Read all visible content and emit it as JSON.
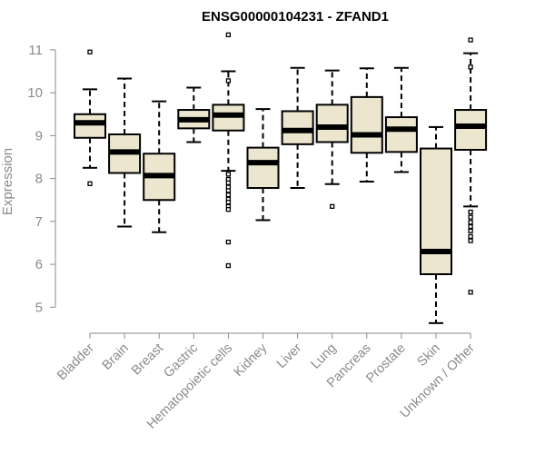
{
  "chart_data": {
    "type": "box",
    "title": "ENSG00000104231 - ZFAND1",
    "xlabel": "",
    "ylabel": "Expression",
    "ylim": [
      4.5,
      11.4
    ],
    "yticks": [
      5,
      6,
      7,
      8,
      9,
      10,
      11
    ],
    "grid": false,
    "legend": "none",
    "box_color": "#ede6cf",
    "categories": [
      "Bladder",
      "Brain",
      "Breast",
      "Gastric",
      "Hematopoietic cells",
      "Kidney",
      "Liver",
      "Lung",
      "Pancreas",
      "Prostate",
      "Skin",
      "Unknown / Other"
    ],
    "boxes": [
      {
        "category": "Bladder",
        "whisker_low": 8.25,
        "q1": 8.95,
        "median": 9.3,
        "q3": 9.5,
        "whisker_high": 10.08,
        "outliers": [
          10.95,
          7.88
        ]
      },
      {
        "category": "Brain",
        "whisker_low": 6.88,
        "q1": 8.13,
        "median": 8.62,
        "q3": 9.03,
        "whisker_high": 10.33,
        "outliers": []
      },
      {
        "category": "Breast",
        "whisker_low": 6.75,
        "q1": 7.5,
        "median": 8.07,
        "q3": 8.58,
        "whisker_high": 9.8,
        "outliers": []
      },
      {
        "category": "Gastric",
        "whisker_low": 8.85,
        "q1": 9.17,
        "median": 9.37,
        "q3": 9.6,
        "whisker_high": 10.12,
        "outliers": []
      },
      {
        "category": "Hematopoietic cells",
        "whisker_low": 8.18,
        "q1": 9.12,
        "median": 9.48,
        "q3": 9.72,
        "whisker_high": 10.5,
        "outliers": [
          11.35,
          10.28,
          8.1,
          7.98,
          7.9,
          7.8,
          7.72,
          7.62,
          7.52,
          7.45,
          7.35,
          7.28,
          6.52,
          5.97
        ]
      },
      {
        "category": "Kidney",
        "whisker_low": 7.03,
        "q1": 7.78,
        "median": 8.37,
        "q3": 8.72,
        "whisker_high": 9.62,
        "outliers": []
      },
      {
        "category": "Liver",
        "whisker_low": 7.78,
        "q1": 8.8,
        "median": 9.12,
        "q3": 9.57,
        "whisker_high": 10.58,
        "outliers": []
      },
      {
        "category": "Lung",
        "whisker_low": 7.87,
        "q1": 8.85,
        "median": 9.2,
        "q3": 9.72,
        "whisker_high": 10.52,
        "outliers": [
          7.35
        ]
      },
      {
        "category": "Pancreas",
        "whisker_low": 7.93,
        "q1": 8.6,
        "median": 9.02,
        "q3": 9.9,
        "whisker_high": 10.57,
        "outliers": []
      },
      {
        "category": "Prostate",
        "whisker_low": 8.15,
        "q1": 8.62,
        "median": 9.15,
        "q3": 9.43,
        "whisker_high": 10.58,
        "outliers": []
      },
      {
        "category": "Skin",
        "whisker_low": 4.63,
        "q1": 5.77,
        "median": 6.3,
        "q3": 8.7,
        "whisker_high": 9.2,
        "outliers": []
      },
      {
        "category": "Unknown / Other",
        "whisker_low": 7.35,
        "q1": 8.67,
        "median": 9.22,
        "q3": 9.6,
        "whisker_high": 10.92,
        "outliers": [
          11.23,
          10.6,
          7.22,
          7.1,
          6.98,
          6.88,
          6.78,
          6.65,
          6.55,
          5.35
        ]
      }
    ]
  }
}
